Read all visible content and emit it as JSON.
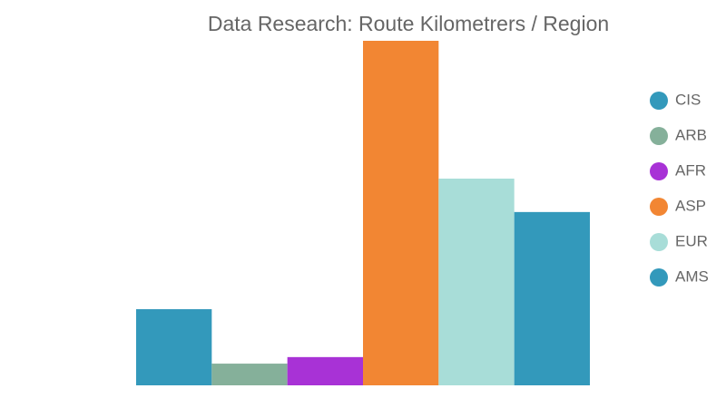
{
  "chart_data": {
    "type": "bar",
    "title": "Data Research: Route Kilometrers / Region",
    "categories": [
      "CIS",
      "ARB",
      "AFR",
      "ASP",
      "EUR",
      "AMS"
    ],
    "values": [
      22.1,
      6.3,
      8.2,
      100,
      60,
      50.3
    ],
    "colors": [
      "#3399bb",
      "#85b09a",
      "#a832d6",
      "#f28633",
      "#a8ddd8",
      "#3399bb"
    ],
    "ylim": [
      0,
      100
    ],
    "legend": "right"
  }
}
